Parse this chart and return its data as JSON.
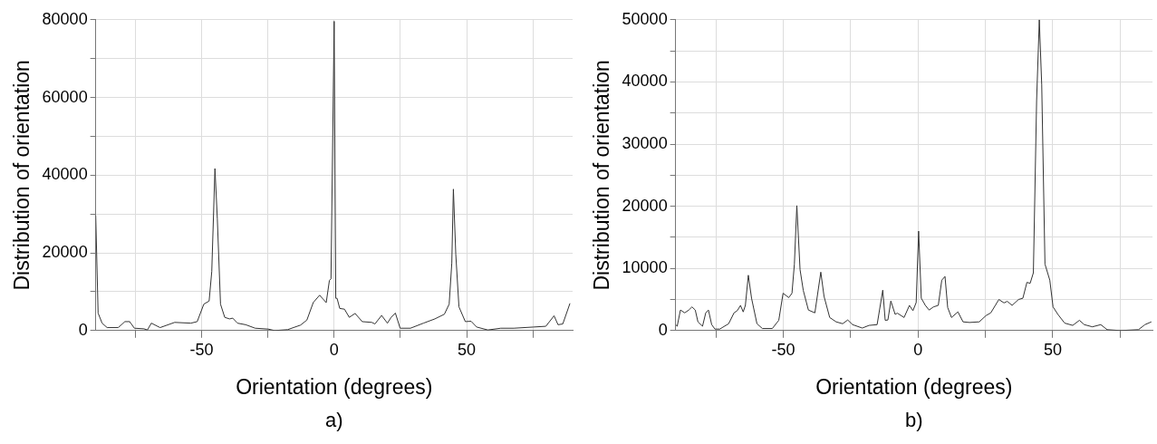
{
  "chart_data": [
    {
      "type": "line",
      "xlabel": "Orientation (degrees)",
      "ylabel": "Distribution of orientation",
      "annotations": [
        "a)"
      ],
      "grid": true,
      "xlim": [
        -90,
        90
      ],
      "ylim": [
        0,
        80000
      ],
      "xticks": [
        {
          "value": -75,
          "label": null
        },
        -50,
        {
          "value": -25,
          "label": null
        },
        0,
        {
          "value": 25,
          "label": null
        },
        50,
        {
          "value": 75,
          "label": null
        }
      ],
      "yticks": [
        0,
        {
          "value": 10000,
          "label": null
        },
        20000,
        {
          "value": 30000,
          "label": null
        },
        40000,
        {
          "value": 50000,
          "label": null
        },
        60000,
        {
          "value": 70000,
          "label": null
        },
        80000
      ],
      "series": [
        {
          "color": "#333333",
          "x": [
            -90,
            -89.1,
            -87.6,
            -85.7,
            -81.5,
            -79,
            -77.2,
            -75.4,
            -71.8,
            -70.5,
            -69,
            -65.7,
            -60.2,
            -54.1,
            -51.7,
            -49.2,
            -47.2,
            -46.2,
            -45,
            -44.1,
            -42.9,
            -41.3,
            -39.5,
            -38.3,
            -36.5,
            -33.4,
            -29.8,
            -24.9,
            -22.5,
            -17.6,
            -12.7,
            -10.3,
            -7.9,
            -5.5,
            -3,
            -1.8,
            -1.2,
            0,
            0.6,
            1.1,
            2.1,
            3.9,
            5.7,
            7.9,
            10.6,
            14.2,
            15.4,
            17.9,
            20.1,
            21.5,
            23.1,
            24.9,
            28.8,
            33.7,
            38,
            41.6,
            43.4,
            44.4,
            45,
            45.9,
            47.1,
            49.5,
            51.7,
            53.8,
            58,
            62.9,
            67.8,
            75.1,
            79.9,
            83,
            84.5,
            86.3,
            89
          ],
          "values": [
            29600,
            4500,
            1900,
            760,
            760,
            2300,
            2300,
            600,
            450,
            150,
            1900,
            760,
            2100,
            1900,
            2300,
            6800,
            7600,
            15200,
            41700,
            28800,
            6800,
            3400,
            3000,
            3200,
            1900,
            1500,
            600,
            380,
            0,
            230,
            1400,
            2700,
            7200,
            9100,
            7200,
            12900,
            13300,
            79600,
            8300,
            8300,
            5700,
            5500,
            3400,
            4400,
            2300,
            2100,
            1700,
            3900,
            1900,
            3400,
            4500,
            600,
            600,
            1900,
            3000,
            4200,
            6800,
            17400,
            36400,
            19700,
            6100,
            2300,
            2400,
            900,
            150,
            600,
            600,
            900,
            1100,
            3800,
            1500,
            1700,
            7000
          ]
        }
      ]
    },
    {
      "type": "line",
      "xlabel": "Orientation (degrees)",
      "ylabel": "Distribution of orientation",
      "annotations": [
        "b)"
      ],
      "grid": true,
      "xlim": [
        -90,
        87
      ],
      "ylim": [
        0,
        50000
      ],
      "xticks": [
        {
          "value": -75,
          "label": null
        },
        -50,
        {
          "value": -25,
          "label": null
        },
        0,
        {
          "value": 25,
          "label": null
        },
        50,
        {
          "value": 75,
          "label": null
        }
      ],
      "yticks": [
        0,
        {
          "value": 5000,
          "label": null
        },
        10000,
        {
          "value": 15000,
          "label": null
        },
        20000,
        {
          "value": 25000,
          "label": null
        },
        30000,
        {
          "value": 35000,
          "label": null
        },
        40000,
        {
          "value": 45000,
          "label": null
        },
        50000
      ],
      "series": [
        {
          "color": "#333333",
          "x": [
            -90,
            -89.4,
            -88.2,
            -86.6,
            -85.1,
            -83.9,
            -82.7,
            -81.7,
            -80,
            -78.8,
            -77.8,
            -76.6,
            -75.4,
            -73.6,
            -70.3,
            -68.3,
            -67.1,
            -65.9,
            -64.9,
            -64.1,
            -63,
            -61.8,
            -59.8,
            -57.8,
            -54.1,
            -51.7,
            -50.1,
            -48,
            -46.8,
            -45.9,
            -45,
            -43.8,
            -42.6,
            -40.7,
            -38.3,
            -36.1,
            -34.9,
            -32.8,
            -30.4,
            -28,
            -26.1,
            -24.3,
            -20.7,
            -18.2,
            -15.2,
            -13.1,
            -12.2,
            -11.2,
            -10.1,
            -8.5,
            -7.7,
            -5.2,
            -3.2,
            -1.9,
            -0.7,
            0.2,
            1.2,
            2.7,
            4.1,
            5.7,
            7.5,
            8.8,
            10,
            11,
            12.4,
            14.8,
            16.7,
            19.1,
            22.7,
            25.2,
            27,
            30,
            31.9,
            33.1,
            34.9,
            37.3,
            38.9,
            40.4,
            41.6,
            42.8,
            44,
            45,
            45.9,
            47.1,
            48.9,
            50.1,
            51.9,
            54.4,
            57.4,
            59.9,
            61.7,
            64.7,
            67.8,
            70.2,
            75.1,
            81.8,
            84.2,
            86.6
          ],
          "values": [
            950,
            700,
            3300,
            2850,
            3300,
            3800,
            3300,
            1400,
            700,
            2850,
            3300,
            950,
            240,
            240,
            1100,
            2850,
            3200,
            4050,
            3000,
            4050,
            8900,
            5200,
            1100,
            330,
            330,
            1650,
            6000,
            5300,
            6000,
            10700,
            20100,
            9800,
            6450,
            3300,
            2850,
            9400,
            5500,
            2100,
            1400,
            1100,
            1700,
            950,
            400,
            830,
            950,
            6500,
            1650,
            1700,
            4750,
            2600,
            2800,
            2100,
            4050,
            3200,
            4500,
            16000,
            5200,
            4050,
            3300,
            3800,
            4050,
            8100,
            8700,
            3700,
            2100,
            3000,
            1400,
            1300,
            1400,
            2400,
            2850,
            5000,
            4450,
            4700,
            4050,
            5000,
            5200,
            7750,
            7600,
            9300,
            37000,
            50000,
            39500,
            10700,
            8100,
            3800,
            2600,
            1200,
            830,
            1650,
            950,
            600,
            950,
            140,
            0,
            140,
            950,
            1400
          ]
        }
      ]
    }
  ]
}
